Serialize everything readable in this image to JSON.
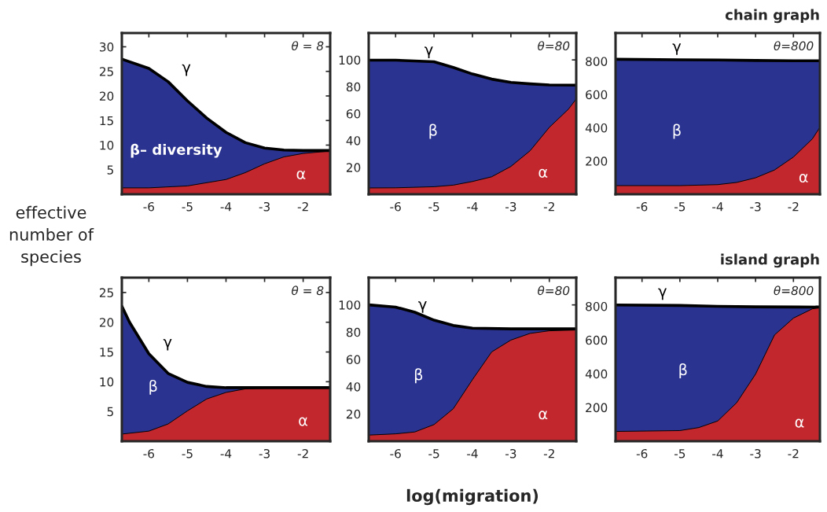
{
  "chart_data": [
    {
      "type": "area",
      "ylabel": "effective\nnumber of\nspecies",
      "xlim": [
        -6.7,
        -1.3
      ],
      "xticks": [
        -6,
        -5,
        -4,
        -3,
        -2
      ],
      "ylim": [
        0,
        32.8
      ],
      "yticks": [
        5,
        10,
        15,
        20,
        25,
        30
      ],
      "grid": false,
      "legend": false,
      "series": [
        {
          "color": "#2b3390",
          "x": [
            -6.7,
            -6,
            -5.5,
            -5,
            -4.5,
            -4,
            -3.5,
            -3,
            -2.5,
            -2,
            -1.3
          ],
          "values": [
            27.5,
            25.6,
            22.9,
            19.0,
            15.5,
            12.6,
            10.5,
            9.4,
            9.0,
            8.9,
            8.9
          ]
        },
        {
          "color": "#c1272d",
          "x": [
            -6.7,
            -6,
            -5,
            -4,
            -3.5,
            -3,
            -2.5,
            -2,
            -1.3
          ],
          "values": [
            1.3,
            1.3,
            1.7,
            3.0,
            4.4,
            6.2,
            7.6,
            8.3,
            8.8
          ]
        }
      ],
      "annotations": [
        "θ = 8",
        "γ",
        "β– diversity",
        "α"
      ]
    },
    {
      "type": "area",
      "xlim": [
        -6.7,
        -1.3
      ],
      "xticks": [
        -6,
        -5,
        -4,
        -3,
        -2
      ],
      "ylim": [
        0,
        120
      ],
      "yticks": [
        20,
        40,
        60,
        80,
        100
      ],
      "grid": false,
      "legend": false,
      "series": [
        {
          "color": "#2b3390",
          "x": [
            -6.7,
            -6,
            -5,
            -4.5,
            -4,
            -3.5,
            -3,
            -2.5,
            -2,
            -1.3
          ],
          "values": [
            99.8,
            99.8,
            98.6,
            94.4,
            89.5,
            85.7,
            83.3,
            82.2,
            81.4,
            81.2
          ]
        },
        {
          "color": "#c1272d",
          "x": [
            -6.7,
            -6,
            -5,
            -4.5,
            -4,
            -3.5,
            -3,
            -2.5,
            -2,
            -1.5,
            -1.3
          ],
          "values": [
            4.7,
            4.8,
            5.6,
            6.8,
            9.5,
            13,
            20.7,
            32.4,
            49.8,
            63.4,
            71
          ]
        }
      ],
      "annotations": [
        "θ=80",
        "γ",
        "β",
        "α"
      ]
    },
    {
      "type": "area",
      "title": "chain graph",
      "xlim": [
        -6.7,
        -1.3
      ],
      "xticks": [
        -6,
        -5,
        -4,
        -3,
        -2
      ],
      "ylim": [
        0,
        970
      ],
      "yticks": [
        200,
        400,
        600,
        800
      ],
      "grid": false,
      "legend": false,
      "series": [
        {
          "color": "#2b3390",
          "x": [
            -6.7,
            -5,
            -4,
            -3,
            -2,
            -1.3
          ],
          "values": [
            812,
            809,
            808,
            805,
            803,
            803
          ]
        },
        {
          "color": "#c1272d",
          "x": [
            -6.7,
            -5,
            -4,
            -3.5,
            -3,
            -2.5,
            -2,
            -1.5,
            -1.3
          ],
          "values": [
            52,
            52,
            58,
            71,
            99,
            146,
            224,
            333,
            403
          ]
        }
      ],
      "annotations": [
        "θ=800",
        "γ",
        "β",
        "α"
      ]
    },
    {
      "type": "area",
      "xlim": [
        -6.7,
        -1.3
      ],
      "xticks": [
        -6,
        -5,
        -4,
        -3,
        -2
      ],
      "ylim": [
        0,
        27.5
      ],
      "yticks": [
        5,
        10,
        15,
        20,
        25
      ],
      "grid": false,
      "legend": false,
      "series": [
        {
          "color": "#2b3390",
          "x": [
            -6.7,
            -6.5,
            -6,
            -5.5,
            -5,
            -4.5,
            -4,
            -3,
            -1.3
          ],
          "values": [
            22.7,
            20.0,
            14.7,
            11.4,
            9.9,
            9.2,
            9.0,
            9.0,
            9.0
          ]
        },
        {
          "color": "#c1272d",
          "x": [
            -6.7,
            -6,
            -5.5,
            -5,
            -4.5,
            -4,
            -3.5,
            -3,
            -1.3
          ],
          "values": [
            1.2,
            1.7,
            2.9,
            5.1,
            7.1,
            8.2,
            8.8,
            8.9,
            9.0
          ]
        }
      ],
      "annotations": [
        "θ = 8",
        "γ",
        "β",
        "α"
      ]
    },
    {
      "type": "area",
      "xlabel": "log(migration)",
      "xlim": [
        -6.7,
        -1.3
      ],
      "xticks": [
        -6,
        -5,
        -4,
        -3,
        -2
      ],
      "ylim": [
        0,
        120
      ],
      "yticks": [
        20,
        40,
        60,
        80,
        100
      ],
      "grid": false,
      "legend": false,
      "series": [
        {
          "color": "#2b3390",
          "x": [
            -6.7,
            -6,
            -5.5,
            -5,
            -4.5,
            -4,
            -3,
            -1.3
          ],
          "values": [
            100,
            98.4,
            94.6,
            88.8,
            84.9,
            82.9,
            82.4,
            82.4
          ]
        },
        {
          "color": "#c1272d",
          "x": [
            -6.7,
            -6,
            -5.5,
            -5,
            -4.5,
            -4,
            -3.5,
            -3,
            -2.5,
            -2,
            -1.3
          ],
          "values": [
            4.5,
            5.4,
            6.8,
            12.2,
            23.8,
            45.2,
            65.5,
            74.2,
            79.1,
            81,
            81.6
          ]
        }
      ],
      "annotations": [
        "θ=80",
        "γ",
        "β",
        "α"
      ]
    },
    {
      "type": "area",
      "title": "island graph",
      "xlim": [
        -6.7,
        -1.3
      ],
      "xticks": [
        -6,
        -5,
        -4,
        -3,
        -2
      ],
      "ylim": [
        0,
        970
      ],
      "yticks": [
        200,
        400,
        600,
        800
      ],
      "grid": false,
      "legend": false,
      "series": [
        {
          "color": "#2b3390",
          "x": [
            -6.7,
            -5,
            -4,
            -3,
            -1.3
          ],
          "values": [
            808,
            805,
            800,
            797,
            795
          ]
        },
        {
          "color": "#c1272d",
          "x": [
            -6.7,
            -5,
            -4.5,
            -4,
            -3.5,
            -3,
            -2.5,
            -2,
            -1.5,
            -1.3
          ],
          "values": [
            58,
            63,
            81,
            120,
            228,
            398,
            630,
            730,
            785,
            792
          ]
        }
      ],
      "annotations": [
        "θ=800",
        "γ",
        "β",
        "α"
      ]
    }
  ]
}
